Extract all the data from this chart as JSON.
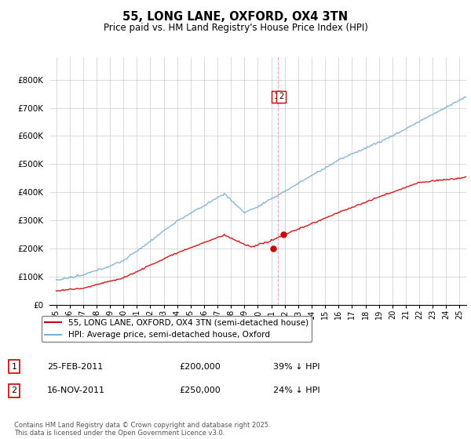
{
  "title": "55, LONG LANE, OXFORD, OX4 3TN",
  "subtitle": "Price paid vs. HM Land Registry's House Price Index (HPI)",
  "legend_line1": "55, LONG LANE, OXFORD, OX4 3TN (semi-detached house)",
  "legend_line2": "HPI: Average price, semi-detached house, Oxford",
  "sale1_date": "25-FEB-2011",
  "sale1_price": "£200,000",
  "sale1_hpi": "39% ↓ HPI",
  "sale2_date": "16-NOV-2011",
  "sale2_price": "£250,000",
  "sale2_hpi": "24% ↓ HPI",
  "footer": "Contains HM Land Registry data © Crown copyright and database right 2025.\nThis data is licensed under the Open Government Licence v3.0.",
  "sale1_year": 2011.14,
  "sale2_year": 2011.88,
  "sale1_price_val": 200000,
  "sale2_price_val": 250000,
  "vline_year": 2011.5,
  "red_color": "#cc0000",
  "blue_color": "#7bafd4",
  "ylim_min": 0,
  "ylim_max": 880000,
  "xmin": 1994.5,
  "xmax": 2025.5
}
